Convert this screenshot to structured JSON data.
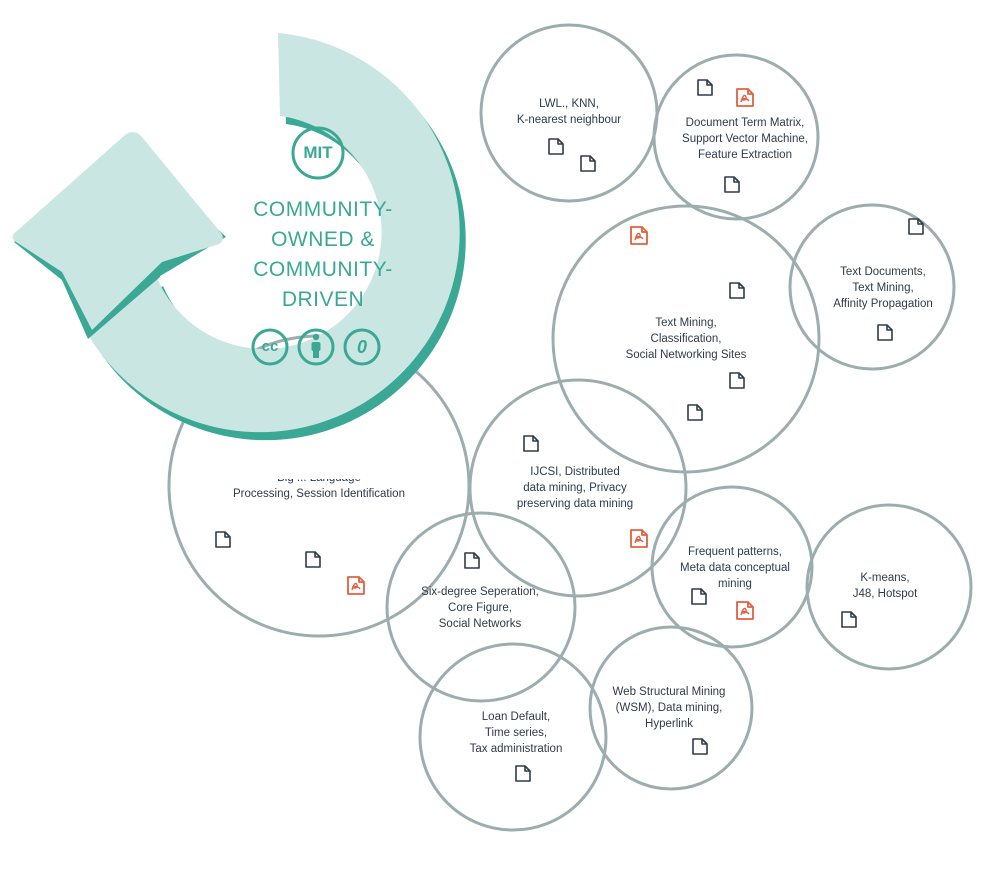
{
  "colors": {
    "circle_stroke": "#9cadad",
    "arrow_fill": "#c9e6e2",
    "arrow_stroke": "#3aa895",
    "accent_green": "#3aa895",
    "doc_icon": "#2f3a4a",
    "pdf_icon": "#e2603f"
  },
  "logo": {
    "mit": "MIT",
    "cc": "cc",
    "zero": "0",
    "community_text": "COMMUNITY-\nOWNED &\nCOMMUNITY-\nDRIVEN"
  },
  "icons": {
    "document": "document-icon",
    "pdf": "pdf-icon",
    "attribution": "person-icon"
  },
  "circles": [
    {
      "id": "lwl",
      "label": "LWL., KNN,\nK-nearest neighbour"
    },
    {
      "id": "dtm",
      "label": "Document Term Matrix,\nSupport Vector Machine,\nFeature Extraction"
    },
    {
      "id": "textmining",
      "label": "Text Mining,\nClassification,\nSocial Networking Sites"
    },
    {
      "id": "textdocs",
      "label": "Text Documents,\nText Mining,\nAffinity Propagation"
    },
    {
      "id": "bigdata",
      "label": "Big ... Language\nProcessing, Session Identification"
    },
    {
      "id": "ijcsi",
      "label": "IJCSI, Distributed\ndata mining, Privacy\npreserving data mining"
    },
    {
      "id": "frequent",
      "label": "Frequent patterns,\nMeta data conceptual\nmining"
    },
    {
      "id": "kmeans",
      "label": "K-means,\nJ48, Hotspot"
    },
    {
      "id": "sixdegree",
      "label": "Six-degree Seperation,\nCore Figure,\nSocial Networks"
    },
    {
      "id": "wsm",
      "label": "Web Structural Mining\n(WSM), Data mining,\nHyperlink"
    },
    {
      "id": "loan",
      "label": "Loan Default,\nTime series,\nTax administration"
    }
  ]
}
